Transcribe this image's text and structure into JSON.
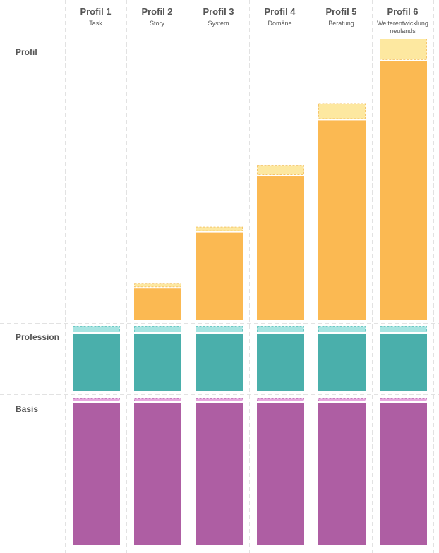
{
  "chart_data": {
    "type": "bar",
    "stacked": true,
    "categories": [
      {
        "title": "Profil 1",
        "subtitle": [
          "Task"
        ]
      },
      {
        "title": "Profil 2",
        "subtitle": [
          "Story"
        ]
      },
      {
        "title": "Profil 3",
        "subtitle": [
          "System"
        ]
      },
      {
        "title": "Profil 4",
        "subtitle": [
          "Domäne"
        ]
      },
      {
        "title": "Profil 5",
        "subtitle": [
          "Beratung"
        ]
      },
      {
        "title": "Profil 6",
        "subtitle": [
          "Weiterentwicklung",
          "neulands"
        ]
      }
    ],
    "rows": [
      {
        "label": "Profil",
        "color": "#fbb952",
        "extra_color": "#fde8a0",
        "extra_border": "#f5c66a",
        "scale_max": 100,
        "values": [
          0,
          11,
          31,
          51,
          71,
          92
        ],
        "extra": [
          0,
          1.5,
          1.5,
          3.5,
          5.5,
          7.5
        ]
      },
      {
        "label": "Profession",
        "color": "#4aafab",
        "extra_color": "#a6e4e1",
        "extra_border": "#6cc9c4",
        "values": [
          100,
          100,
          100,
          100,
          100,
          100
        ],
        "extra": [
          8,
          8,
          8,
          8,
          8,
          8
        ]
      },
      {
        "label": "Basis",
        "color": "#ae5ea3",
        "extra_color": "#e8a6df",
        "extra_border": "#c97dbf",
        "values": [
          100,
          100,
          100,
          100,
          100,
          100
        ],
        "extra": [
          3,
          3,
          3,
          3,
          3,
          3
        ]
      }
    ],
    "legend": "none",
    "grid": true
  }
}
